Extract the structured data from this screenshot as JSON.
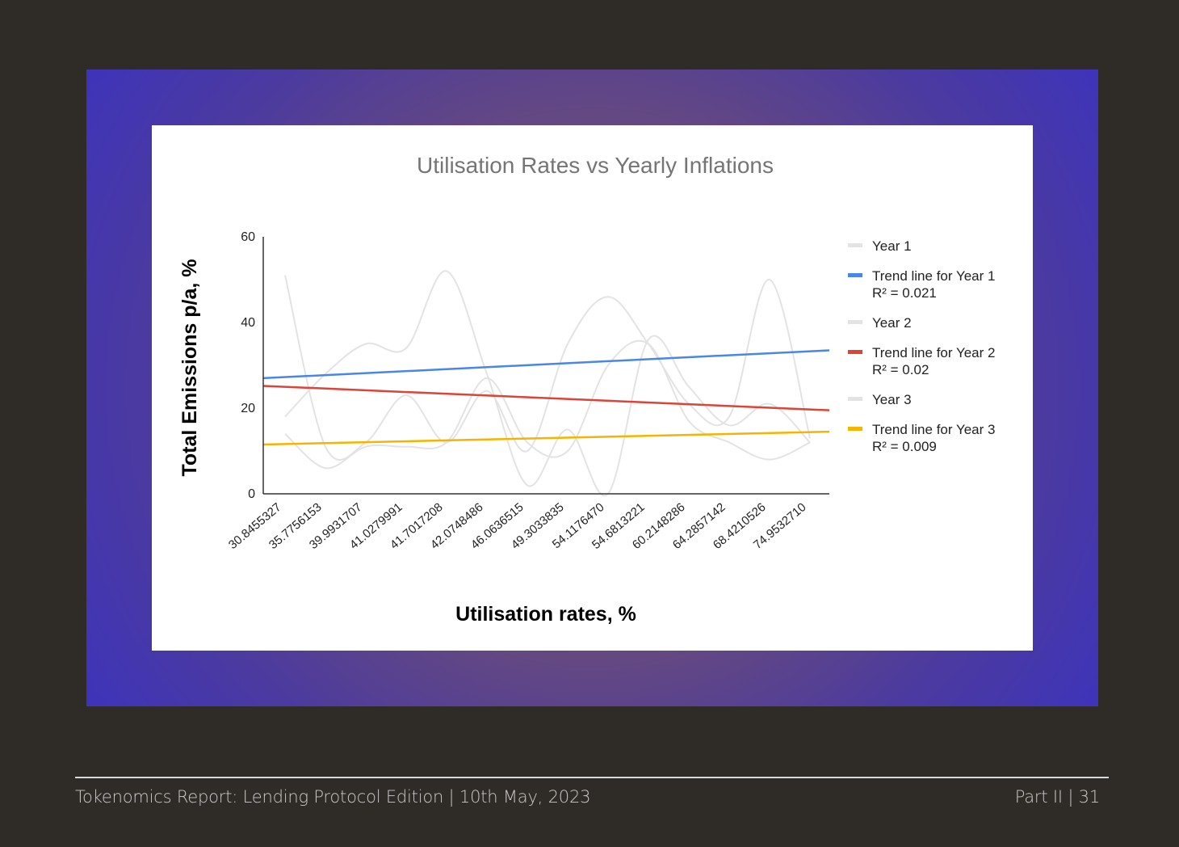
{
  "footer": {
    "left": "Tokenomics Report: Lending Protocol Edition | 10th May, 2023",
    "right": "Part II | 31"
  },
  "chart_data": {
    "type": "line",
    "title": "Utilisation Rates vs Yearly Inflations",
    "xlabel": "Utilisation rates, %",
    "ylabel": "Total Emissions p/a, %",
    "ylim": [
      0,
      60
    ],
    "yticks": [
      0,
      20,
      40,
      60
    ],
    "grid": false,
    "legend_position": "right",
    "categories": [
      "30.8455327",
      "35.7756153",
      "39.9931707",
      "41.0279991",
      "41.7017208",
      "42.0748486",
      "46.0636515",
      "49.3033835",
      "54.1176470",
      "54.6813221",
      "60.2148286",
      "64.2857142",
      "68.4210526",
      "74.9532710"
    ],
    "series": [
      {
        "name": "Year 1",
        "color": "#e3e3e3",
        "values": [
          51,
          11,
          12,
          23,
          12,
          24,
          10,
          35,
          46,
          35,
          21,
          18,
          50,
          13
        ]
      },
      {
        "name": "Year 2",
        "color": "#e3e3e3",
        "values": [
          18,
          28,
          35,
          34,
          52,
          28,
          2,
          15,
          0,
          36,
          25,
          16,
          21,
          12
        ]
      },
      {
        "name": "Year 3",
        "color": "#e3e3e3",
        "values": [
          14,
          6,
          11,
          11,
          12,
          27,
          12,
          10,
          30,
          35,
          17,
          12,
          8,
          12
        ]
      }
    ],
    "trendlines": [
      {
        "name": "Trend line for Year 1",
        "r2_label": "R² = 0.021",
        "color": "#4a86e8",
        "start": 27,
        "end": 33.5
      },
      {
        "name": "Trend line for Year 2",
        "r2_label": "R² = 0.02",
        "color": "#db4437",
        "start": 25.2,
        "end": 19.5
      },
      {
        "name": "Trend line for Year 3",
        "r2_label": "R² = 0.009",
        "color": "#f4b400",
        "start": 11.5,
        "end": 14.5
      }
    ]
  }
}
